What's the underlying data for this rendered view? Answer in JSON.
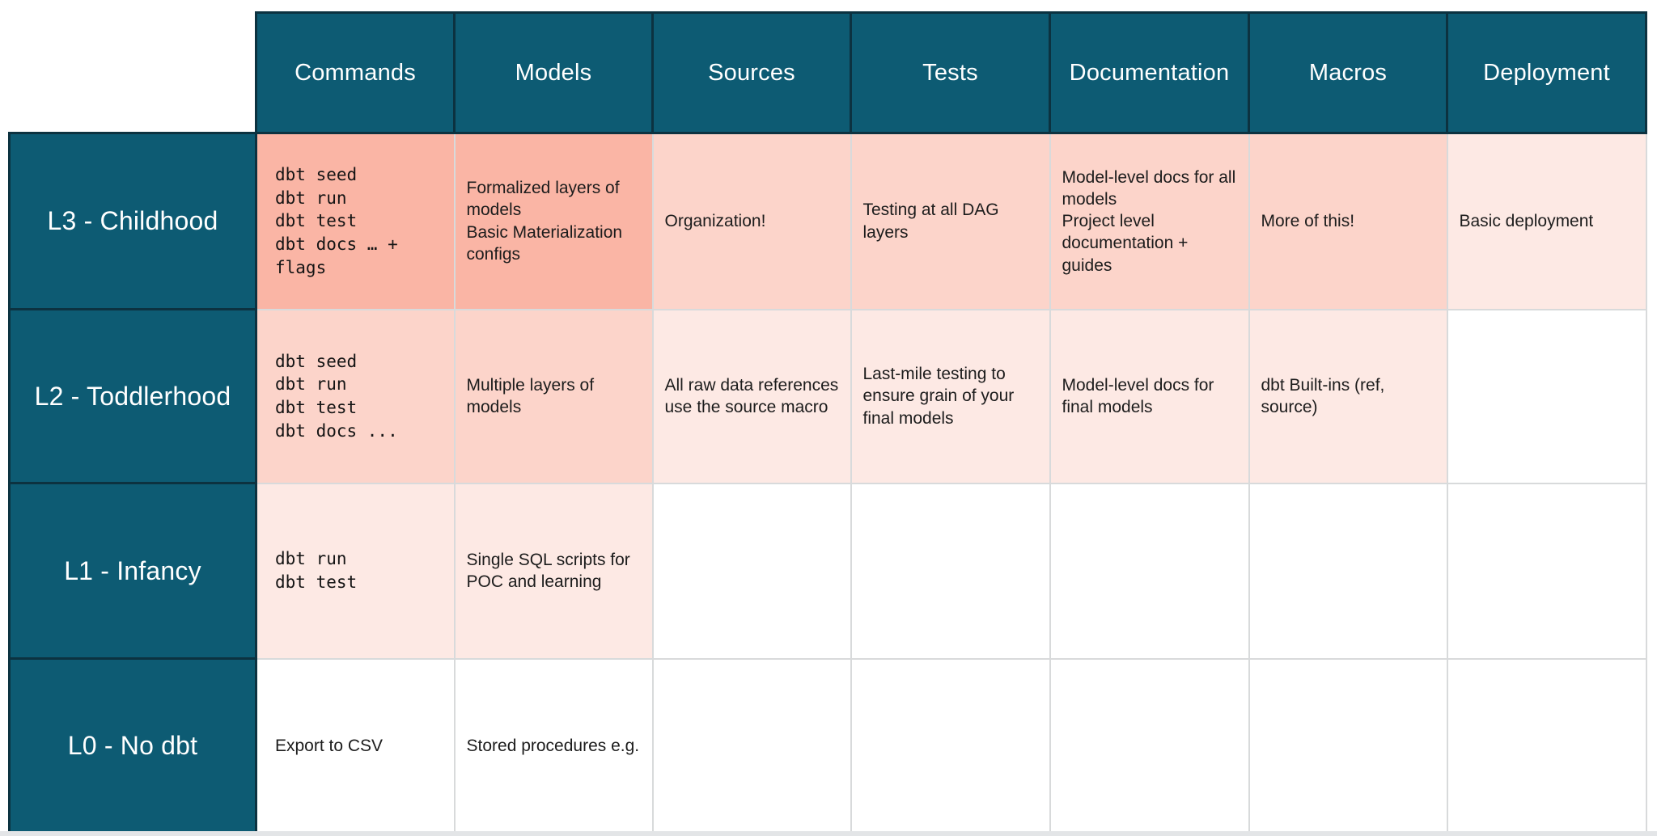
{
  "colors": {
    "header_teal": "#0d5b73",
    "header_border": "#0c3240",
    "shade_strong": "#fab5a5",
    "shade_medium": "#fcd4ca",
    "shade_light": "#fde9e4",
    "grid_line": "#d8dadb",
    "bottom_strip": "#e3e5e7",
    "body_text": "#1c1c1c",
    "header_text": "#ffffff"
  },
  "table": {
    "columns": [
      "Commands",
      "Models",
      "Sources",
      "Tests",
      "Documentation",
      "Macros",
      "Deployment"
    ],
    "rows": [
      {
        "label": "L3 - Childhood",
        "cells": [
          {
            "text": "dbt seed\ndbt run\ndbt test\ndbt docs … + flags",
            "mono": true,
            "shade": 1
          },
          {
            "text": "Formalized layers of models\nBasic Materialization configs",
            "mono": false,
            "shade": 1
          },
          {
            "text": "Organization!",
            "mono": false,
            "shade": 2
          },
          {
            "text": "Testing at all DAG layers",
            "mono": false,
            "shade": 2
          },
          {
            "text": "Model-level docs for all models\nProject level documentation + guides",
            "mono": false,
            "shade": 2
          },
          {
            "text": "More of this!",
            "mono": false,
            "shade": 2
          },
          {
            "text": "Basic deployment",
            "mono": false,
            "shade": 3
          }
        ]
      },
      {
        "label": "L2 - Toddlerhood",
        "cells": [
          {
            "text": "dbt seed\ndbt run\ndbt test\ndbt docs ...",
            "mono": true,
            "shade": 2
          },
          {
            "text": "Multiple layers of models",
            "mono": false,
            "shade": 2
          },
          {
            "text": "All raw data references use the source macro",
            "mono": false,
            "shade": 3
          },
          {
            "text": "Last-mile testing to ensure grain of your final models",
            "mono": false,
            "shade": 3
          },
          {
            "text": "Model-level docs for final models",
            "mono": false,
            "shade": 3
          },
          {
            "text": "dbt Built-ins (ref, source)",
            "mono": false,
            "shade": 3
          },
          {
            "text": "",
            "mono": false,
            "shade": 0
          }
        ]
      },
      {
        "label": "L1 - Infancy",
        "cells": [
          {
            "text": "dbt run\ndbt test",
            "mono": true,
            "shade": 3
          },
          {
            "text": "Single SQL scripts for POC and learning",
            "mono": false,
            "shade": 3
          },
          {
            "text": "",
            "mono": false,
            "shade": 0
          },
          {
            "text": "",
            "mono": false,
            "shade": 0
          },
          {
            "text": "",
            "mono": false,
            "shade": 0
          },
          {
            "text": "",
            "mono": false,
            "shade": 0
          },
          {
            "text": "",
            "mono": false,
            "shade": 0
          }
        ]
      },
      {
        "label": "L0 - No dbt",
        "cells": [
          {
            "text": "Export to CSV",
            "mono": false,
            "shade": 0
          },
          {
            "text": "Stored procedures e.g.",
            "mono": false,
            "shade": 0
          },
          {
            "text": "",
            "mono": false,
            "shade": 0
          },
          {
            "text": "",
            "mono": false,
            "shade": 0
          },
          {
            "text": "",
            "mono": false,
            "shade": 0
          },
          {
            "text": "",
            "mono": false,
            "shade": 0
          },
          {
            "text": "",
            "mono": false,
            "shade": 0
          }
        ]
      }
    ]
  }
}
